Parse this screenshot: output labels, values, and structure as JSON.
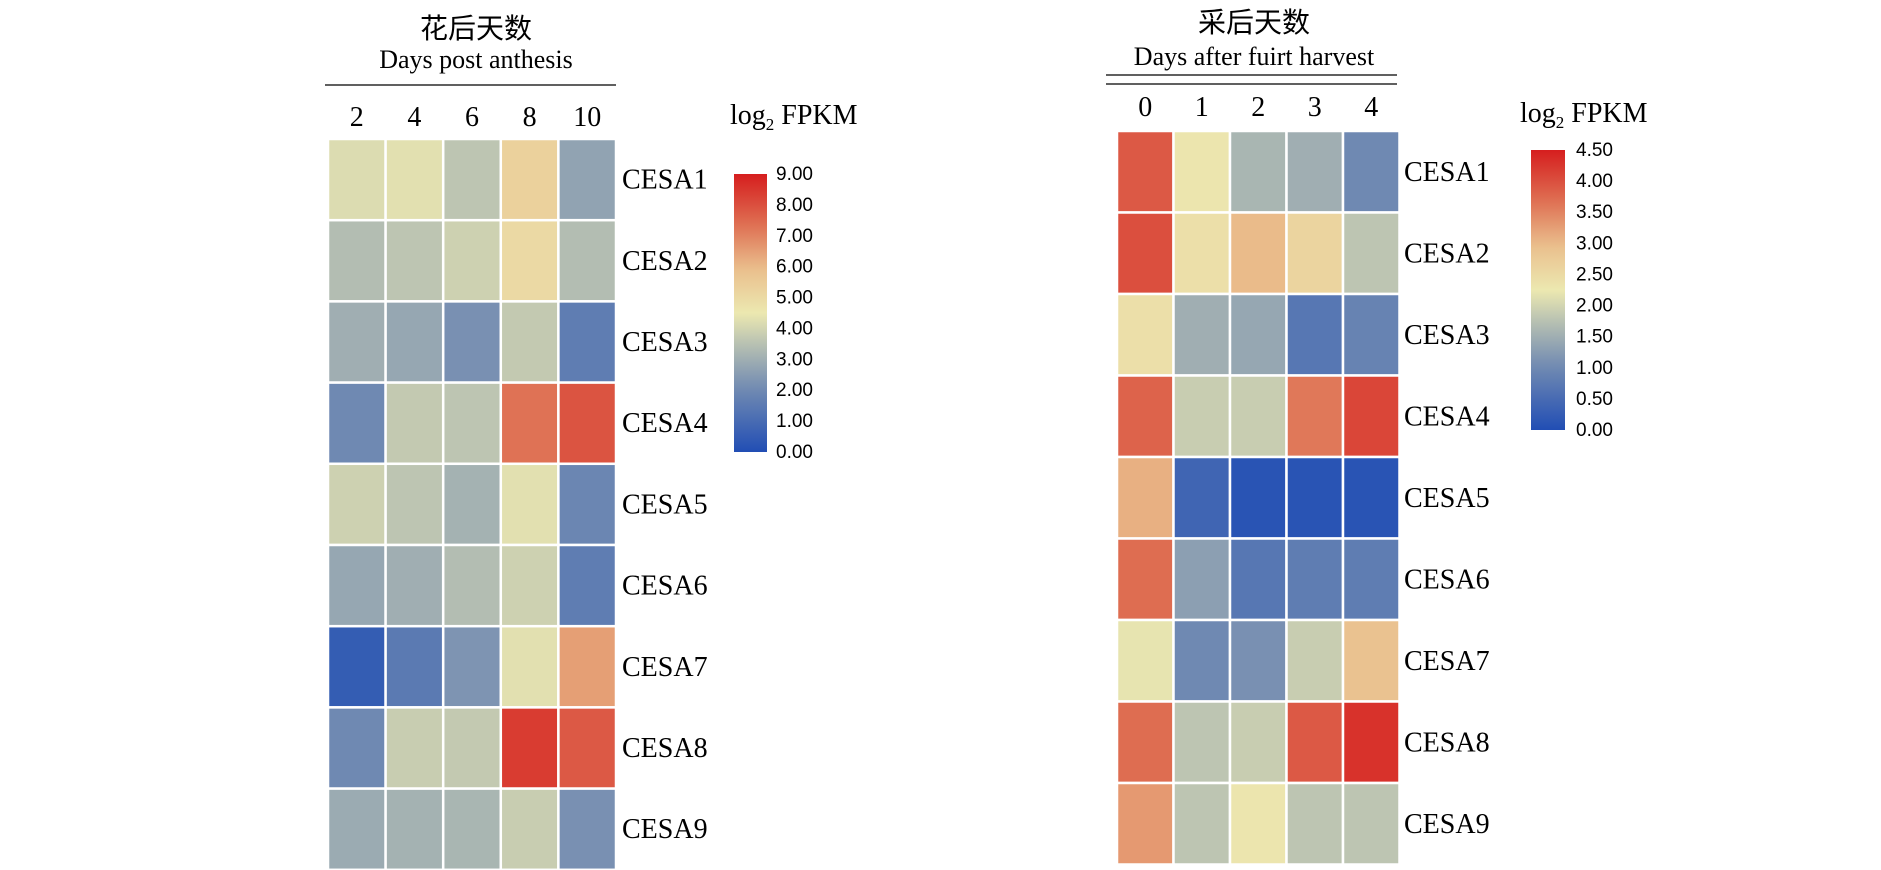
{
  "chart_data": [
    {
      "type": "heatmap",
      "title": "花后天数",
      "subtitle": "Days post anthesis",
      "x": [
        "2",
        "4",
        "6",
        "8",
        "10"
      ],
      "rows": [
        "CESA1",
        "CESA2",
        "CESA3",
        "CESA4",
        "CESA5",
        "CESA6",
        "CESA7",
        "CESA8",
        "CESA9"
      ],
      "values": [
        [
          4.2,
          4.3,
          3.6,
          5.3,
          2.7
        ],
        [
          3.4,
          3.6,
          3.9,
          5.0,
          3.4
        ],
        [
          3.0,
          2.8,
          2.2,
          3.7,
          1.6
        ],
        [
          2.0,
          3.7,
          3.6,
          7.3,
          7.9
        ],
        [
          3.9,
          3.6,
          3.1,
          4.3,
          1.9
        ],
        [
          2.8,
          3.0,
          3.4,
          3.9,
          1.6
        ],
        [
          0.5,
          1.5,
          2.3,
          4.3,
          6.5
        ],
        [
          2.0,
          3.8,
          3.7,
          8.4,
          7.8
        ],
        [
          2.9,
          3.1,
          3.2,
          3.8,
          2.2
        ]
      ],
      "legend_title_main": "log",
      "legend_title_sub": "2",
      "legend_title_rest": " FPKM",
      "legend_ticks": [
        "9.00",
        "8.00",
        "7.00",
        "6.00",
        "5.00",
        "4.00",
        "3.00",
        "2.00",
        "1.00",
        "0.00"
      ],
      "range": [
        0,
        9
      ]
    },
    {
      "type": "heatmap",
      "title": "采后天数",
      "subtitle": "Days after fuirt harvest",
      "x": [
        "0",
        "1",
        "2",
        "3",
        "4"
      ],
      "rows": [
        "CESA1",
        "CESA2",
        "CESA3",
        "CESA4",
        "CESA5",
        "CESA6",
        "CESA7",
        "CESA8",
        "CESA9"
      ],
      "values": [
        [
          3.9,
          2.3,
          1.6,
          1.5,
          1.0
        ],
        [
          4.0,
          2.4,
          3.0,
          2.6,
          1.8
        ],
        [
          2.4,
          1.5,
          1.4,
          0.7,
          0.9
        ],
        [
          3.8,
          1.9,
          1.9,
          3.6,
          4.1
        ],
        [
          3.1,
          0.4,
          0.1,
          0.1,
          0.1
        ],
        [
          3.7,
          1.3,
          0.7,
          0.8,
          0.8
        ],
        [
          2.2,
          1.0,
          1.1,
          1.9,
          2.9
        ],
        [
          3.7,
          1.8,
          1.9,
          3.9,
          4.3
        ],
        [
          3.3,
          1.8,
          2.3,
          1.8,
          1.8
        ]
      ],
      "legend_title_main": "log",
      "legend_title_sub": "2",
      "legend_title_rest": " FPKM",
      "legend_ticks": [
        "4.50",
        "4.00",
        "3.50",
        "3.00",
        "2.50",
        "2.00",
        "1.50",
        "1.00",
        "0.50",
        "0.00"
      ],
      "range": [
        0,
        4.5
      ]
    }
  ]
}
